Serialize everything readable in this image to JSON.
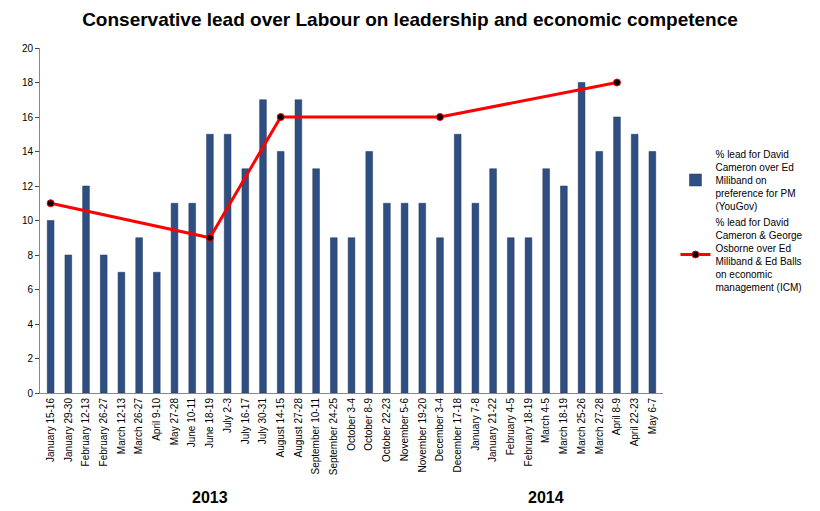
{
  "chart_data": {
    "type": "bar",
    "title": "Conservative lead over Labour on leadership and economic competence",
    "categories": [
      "January 15-16",
      "January 29-30",
      "February 12-13",
      "February 26-27",
      "March 12-13",
      "March 26-27",
      "April 9-10",
      "May 27-28",
      "June 10-11",
      "June 18-19",
      "July 2-3",
      "July 16-17",
      "July 30-31",
      "August 14-15",
      "August 27-28",
      "September 10-11",
      "September 24-25",
      "October 3-4",
      "October 8-9",
      "October 22-23",
      "November 5-6",
      "November 19-20",
      "December 3-4",
      "December 17-18",
      "January 7-8",
      "January 21-22",
      "February 4-5",
      "February 18-19",
      "March 4-5",
      "March 18-19",
      "March 25-26",
      "March 27-28",
      "April 8-9",
      "April 22-23",
      "May 6-7"
    ],
    "series": [
      {
        "name": "% lead for David Cameron & George Osborne over Ed Miliband & Ed Balls on economic management (ICM)",
        "type": "line",
        "color": "#ff0000",
        "marker": "circle",
        "values": [
          11,
          null,
          null,
          null,
          null,
          null,
          null,
          null,
          null,
          9,
          null,
          null,
          null,
          16,
          null,
          null,
          null,
          null,
          null,
          null,
          null,
          null,
          16,
          null,
          null,
          null,
          null,
          null,
          null,
          null,
          null,
          null,
          18,
          null,
          null
        ]
      },
      {
        "name": "% lead for David Cameron over Ed Miliband on preference for PM (YouGov)",
        "type": "bar",
        "color": "#2f4f82",
        "values": [
          10,
          8,
          12,
          8,
          7,
          9,
          7,
          11,
          11,
          15,
          15,
          13,
          17,
          14,
          17,
          13,
          9,
          9,
          14,
          11,
          11,
          11,
          9,
          15,
          11,
          13,
          9,
          9,
          13,
          12,
          18,
          14,
          16,
          15,
          14
        ]
      }
    ],
    "annotations": [
      {
        "text": "2013",
        "category": "June 18-19"
      },
      {
        "text": "2014",
        "category": "March 4-5"
      }
    ],
    "ylim": [
      0,
      20
    ],
    "yticks": [
      0,
      2,
      4,
      6,
      8,
      10,
      12,
      14,
      16,
      18,
      20
    ],
    "grid": false,
    "legend": "right"
  }
}
